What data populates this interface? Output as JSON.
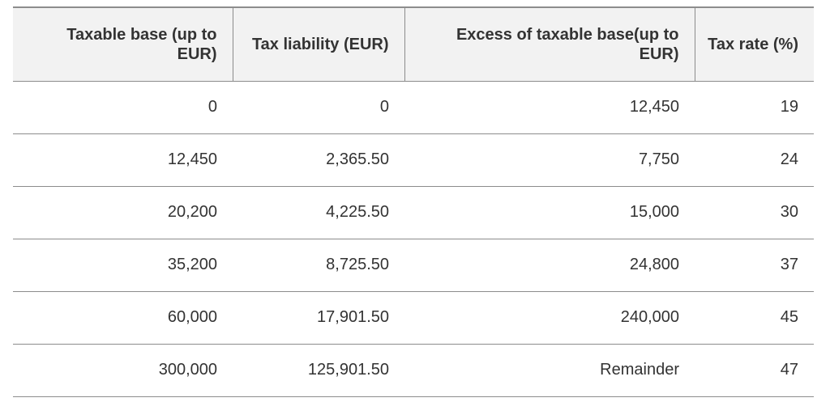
{
  "table": {
    "headers": [
      "Taxable base (up to EUR)",
      "Tax liability (EUR)",
      "Excess of taxable base(up to EUR)",
      "Tax rate (%)"
    ],
    "rows": [
      [
        "0",
        "0",
        "12,450",
        "19"
      ],
      [
        "12,450",
        "2,365.50",
        "7,750",
        "24"
      ],
      [
        "20,200",
        "4,225.50",
        "15,000",
        "30"
      ],
      [
        "35,200",
        "8,725.50",
        "24,800",
        "37"
      ],
      [
        "60,000",
        "17,901.50",
        "240,000",
        "45"
      ],
      [
        "300,000",
        "125,901.50",
        "Remainder",
        "47"
      ]
    ]
  }
}
